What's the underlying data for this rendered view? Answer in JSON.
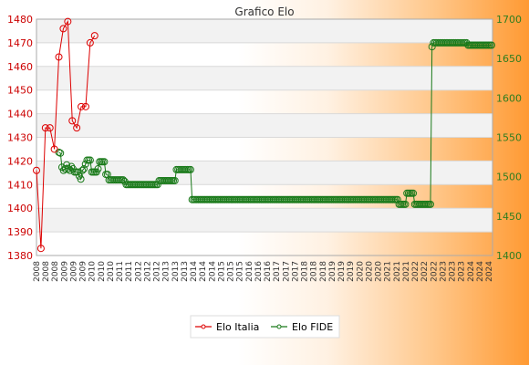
{
  "chart_data": {
    "type": "line",
    "title": "Grafico Elo",
    "colors": {
      "italia": "#dd0000",
      "fide": "#1a7a1a"
    },
    "y_left": {
      "lim": [
        1380,
        1480
      ],
      "ticks": [
        1380,
        1390,
        1400,
        1410,
        1420,
        1430,
        1440,
        1450,
        1460,
        1470,
        1480
      ]
    },
    "y_right": {
      "lim": [
        1400,
        1700
      ],
      "ticks": [
        1400,
        1450,
        1500,
        1550,
        1600,
        1650,
        1700
      ]
    },
    "grid": true,
    "legend": {
      "position": "bottom-center",
      "entries": [
        "Elo Italia",
        "Elo FIDE"
      ]
    },
    "x_tick_labels": [
      "2008",
      "2008",
      "2008",
      "2009",
      "2009",
      "2009",
      "2010",
      "2010",
      "2010",
      "2011",
      "2011",
      "2012",
      "2012",
      "2012",
      "2013",
      "2013",
      "2013",
      "2014",
      "2014",
      "2014",
      "2015",
      "2015",
      "2015",
      "2016",
      "2016",
      "2016",
      "2017",
      "2017",
      "2017",
      "2018",
      "2018",
      "2018",
      "2019",
      "2019",
      "2019",
      "2020",
      "2020",
      "2020",
      "2021",
      "2021",
      "2021",
      "2022",
      "2022",
      "2022",
      "2023",
      "2023",
      "2023",
      "2024",
      "2024",
      "2024"
    ],
    "series": [
      {
        "name": "Elo Italia",
        "axis": "left",
        "values": [
          1416,
          1383,
          1434,
          1434,
          1425,
          1464,
          1476,
          1479,
          1437,
          1434,
          1443,
          1443,
          1470,
          1473
        ]
      },
      {
        "name": "Elo FIDE",
        "axis": "right",
        "offset": 13,
        "values": [
          1531,
          1530,
          1512,
          1508,
          1510,
          1515,
          1510,
          1508,
          1513,
          1510,
          1506,
          1506,
          1506,
          1501,
          1497,
          1508,
          1510,
          1516,
          1521,
          1521,
          1521,
          1506,
          1506,
          1506,
          1506,
          1510,
          1519,
          1519,
          1519,
          1519,
          1503,
          1503,
          1496,
          1496,
          1496,
          1496,
          1496,
          1496,
          1496,
          1496,
          1496,
          1496,
          1494,
          1490,
          1490,
          1490,
          1490,
          1490,
          1490,
          1490,
          1490,
          1490,
          1490,
          1490,
          1490,
          1490,
          1490,
          1490,
          1490,
          1490,
          1490,
          1490,
          1490,
          1490,
          1495,
          1495,
          1495,
          1495,
          1495,
          1495,
          1495,
          1495,
          1495,
          1495,
          1495,
          1509,
          1509,
          1509,
          1509,
          1509,
          1509,
          1509,
          1509,
          1509,
          1509,
          1471,
          1471,
          1471,
          1471,
          1471,
          1471,
          1471,
          1471,
          1471,
          1471,
          1471,
          1471,
          1471,
          1471,
          1471,
          1471,
          1471,
          1471,
          1471,
          1471,
          1471,
          1471,
          1471,
          1471,
          1471,
          1471,
          1471,
          1471,
          1471,
          1471,
          1471,
          1471,
          1471,
          1471,
          1471,
          1471,
          1471,
          1471,
          1471,
          1471,
          1471,
          1471,
          1471,
          1471,
          1471,
          1471,
          1471,
          1471,
          1471,
          1471,
          1471,
          1471,
          1471,
          1471,
          1471,
          1471,
          1471,
          1471,
          1471,
          1471,
          1471,
          1471,
          1471,
          1471,
          1471,
          1471,
          1471,
          1471,
          1471,
          1471,
          1471,
          1471,
          1471,
          1471,
          1471,
          1471,
          1471,
          1471,
          1471,
          1471,
          1471,
          1471,
          1471,
          1471,
          1471,
          1471,
          1471,
          1471,
          1471,
          1471,
          1471,
          1471,
          1471,
          1471,
          1471,
          1471,
          1471,
          1471,
          1471,
          1471,
          1471,
          1471,
          1471,
          1471,
          1471,
          1471,
          1471,
          1471,
          1471,
          1471,
          1471,
          1471,
          1471,
          1471,
          1471,
          1471,
          1471,
          1471,
          1471,
          1471,
          1471,
          1471,
          1471,
          1471,
          1471,
          1471,
          1471,
          1471,
          1471,
          1471,
          1471,
          1471,
          1465,
          1465,
          1465,
          1465,
          1465,
          1479,
          1479,
          1479,
          1479,
          1479,
          1465,
          1465,
          1465,
          1465,
          1465,
          1465,
          1465,
          1465,
          1465,
          1465,
          1465,
          1665,
          1670,
          1670,
          1670,
          1670,
          1670,
          1670,
          1670,
          1670,
          1670,
          1670,
          1670,
          1670,
          1670,
          1670,
          1670,
          1670,
          1670,
          1670,
          1670,
          1670,
          1670,
          1670,
          1667,
          1667,
          1667,
          1667,
          1667,
          1667,
          1667,
          1667,
          1667,
          1667,
          1667,
          1667,
          1667,
          1667,
          1667,
          1667
        ]
      }
    ]
  }
}
